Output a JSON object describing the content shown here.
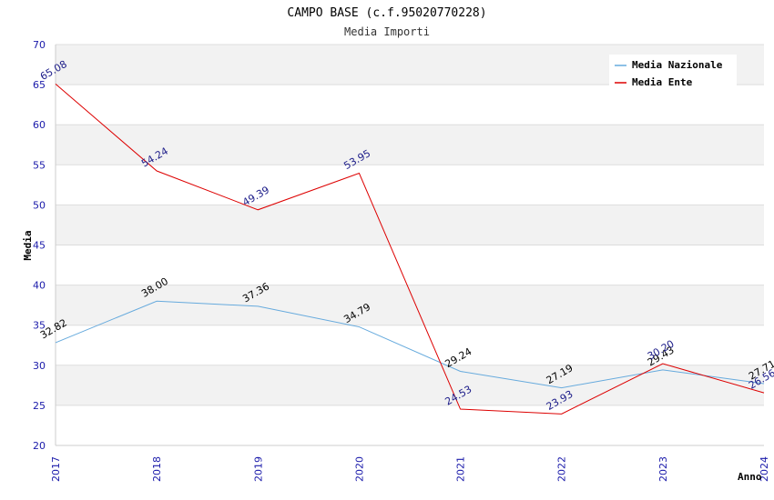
{
  "chart_data": {
    "type": "line",
    "title": "CAMPO BASE (c.f.95020770228)",
    "subtitle": "Media Importi",
    "xlabel": "Anno",
    "ylabel": "Media",
    "x": [
      "2017",
      "2018",
      "2019",
      "2020",
      "2021",
      "2022",
      "2023",
      "2024"
    ],
    "ylim": [
      20,
      70
    ],
    "yticks": [
      20,
      25,
      30,
      35,
      40,
      45,
      50,
      55,
      60,
      65,
      70
    ],
    "grid": "horizontal bands",
    "legend_position": "top-right",
    "series": [
      {
        "name": "Media Nazionale",
        "color": "#66aadd",
        "label_color": "#000000",
        "values": [
          32.82,
          38.0,
          37.36,
          34.79,
          29.24,
          27.19,
          29.43,
          27.71
        ],
        "labels": [
          "32.82",
          "38.00",
          "37.36",
          "34.79",
          "29.24",
          "27.19",
          "29.43",
          "27.71"
        ]
      },
      {
        "name": "Media Ente",
        "color": "#dd0000",
        "label_color": "#1a1a88",
        "values": [
          65.08,
          54.24,
          49.39,
          53.95,
          24.53,
          23.93,
          30.2,
          26.56
        ],
        "labels": [
          "65.08",
          "54.24",
          "49.39",
          "53.95",
          "24.53",
          "23.93",
          "30.20",
          "26.56"
        ]
      }
    ]
  }
}
